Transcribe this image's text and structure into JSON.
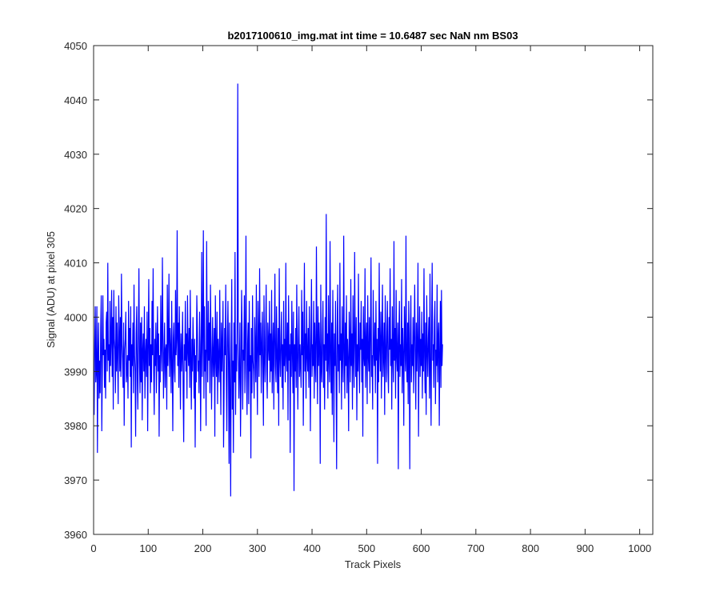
{
  "chart_data": {
    "type": "line",
    "title": "b2017100610_img.mat int time = 10.6487 sec  NaN nm BS03",
    "xlabel": "Track Pixels",
    "ylabel": "Signal (ADU) at pixel 305",
    "xlim": [
      0,
      1024
    ],
    "ylim": [
      3960,
      4050
    ],
    "xticks": [
      0,
      100,
      200,
      300,
      400,
      500,
      600,
      700,
      800,
      900,
      1000
    ],
    "yticks": [
      3960,
      3970,
      3980,
      3990,
      4000,
      4010,
      4020,
      4030,
      4040,
      4050
    ],
    "grid": false,
    "legend": "none",
    "series": [
      {
        "color": "#0000ff",
        "x_start": 1,
        "x_step": 1,
        "summary": {
          "mean": 3994,
          "min": 3967,
          "max": 4043,
          "count": 1024
        },
        "values": [
          3982,
          3995,
          4002,
          3988,
          3990,
          4002,
          3975,
          3993,
          3999,
          3985,
          3992,
          3986,
          3998,
          4004,
          3979,
          3990,
          4004,
          3993,
          3996,
          3987,
          3994,
          3985,
          3999,
          4001,
          3990,
          4010,
          3992,
          3995,
          3988,
          4003,
          3991,
          3996,
          4005,
          3989,
          4000,
          3983,
          4005,
          3996,
          3994,
          3986,
          4002,
          3990,
          3999,
          3993,
          3984,
          4004,
          3997,
          3990,
          4000,
          3989,
          4008,
          3995,
          3992,
          3987,
          3999,
          3980,
          3994,
          3996,
          4001,
          3988,
          3990,
          3993,
          3985,
          4003,
          3992,
          3998,
          3989,
          4002,
          3976,
          3995,
          3991,
          3999,
          3986,
          4006,
          3993,
          3990,
          3978,
          3997,
          4002,
          3989,
          3983,
          3996,
          4009,
          3992,
          3986,
          3999,
          3988,
          4000,
          3981,
          3994,
          3997,
          3990,
          4002,
          3985,
          3993,
          3996,
          3989,
          4001,
          3979,
          3994,
          4007,
          3991,
          3998,
          3986,
          3995,
          3988,
          4003,
          3993,
          4009,
          3990,
          3982,
          3996,
          3991,
          3999,
          3986,
          3994,
          4002,
          3990,
          3997,
          3978,
          3993,
          3988,
          4004,
          3995,
          3990,
          4011,
          3997,
          3985,
          3993,
          3999,
          3987,
          3994,
          3995,
          3983,
          4006,
          3991,
          3996,
          4008,
          3989,
          3998,
          3994,
          3986,
          4003,
          3992,
          3979,
          3996,
          3999,
          3990,
          3988,
          4005,
          3993,
          3996,
          4016,
          3991,
          3999,
          3987,
          4002,
          3994,
          3983,
          3997,
          3990,
          3993,
          4001,
          3986,
          3977,
          3995,
          3992,
          4003,
          3990,
          3997,
          3985,
          4004,
          3994,
          3991,
          3998,
          3987,
          4005,
          3992,
          3983,
          3996,
          3990,
          4000,
          3994,
          3985,
          3996,
          3976,
          3993,
          3988,
          4004,
          3998,
          3990,
          3992,
          3986,
          4001,
          3995,
          3979,
          3994,
          4012,
          3989,
          3998,
          4016,
          3985,
          4002,
          3990,
          3994,
          3980,
          4014,
          3995,
          3988,
          4003,
          3992,
          3999,
          3986,
          4006,
          3996,
          3983,
          3992,
          4000,
          3989,
          3993,
          3998,
          3978,
          4004,
          3993,
          3989,
          4001,
          3984,
          3996,
          3992,
          3988,
          4005,
          3993,
          3982,
          3999,
          3990,
          3995,
          4003,
          3976,
          3987,
          3998,
          3993,
          4006,
          3989,
          3979,
          3996,
          4003,
          3991,
          3973,
          3999,
          3986,
          3967,
          3994,
          4007,
          3983,
          3992,
          3975,
          3999,
          3988,
          4012,
          3982,
          3995,
          3990,
          4000,
          4043,
          3994,
          3985,
          3991,
          3999,
          3978,
          3988,
          4005,
          3997,
          3983,
          3994,
          3992,
          4004,
          3986,
          3996,
          4015,
          3990,
          3982,
          3995,
          3999,
          3984,
          4003,
          3990,
          3993,
          3974,
          3998,
          3986,
          4004,
          3992,
          3990,
          3985,
          4000,
          3994,
          3988,
          4006,
          3992,
          3982,
          4003,
          3996,
          3989,
          4009,
          3993,
          3999,
          3986,
          3995,
          4001,
          3990,
          3980,
          4004,
          3993,
          3988,
          3997,
          4006,
          3990,
          3985,
          3999,
          3995,
          3992,
          4003,
          3988,
          3997,
          3990,
          4005,
          3986,
          3994,
          3999,
          3983,
          3996,
          4008,
          3991,
          3988,
          4002,
          3993,
          3986,
          3998,
          3980,
          4009,
          3993,
          3989,
          3996,
          4001,
          3987,
          3995,
          3983,
          4003,
          3991,
          3996,
          3988,
          4010,
          3993,
          3990,
          3999,
          3981,
          4004,
          3992,
          3995,
          3975,
          3997,
          3989,
          4003,
          3994,
          3986,
          4001,
          3968,
          3995,
          3990,
          3998,
          3987,
          4006,
          3993,
          3983,
          3996,
          4002,
          3989,
          3995,
          3991,
          3987,
          4005,
          3993,
          4001,
          3980,
          3994,
          4010,
          3990,
          3997,
          3985,
          4003,
          3993,
          3990,
          3998,
          3987,
          4002,
          3994,
          3979,
          3996,
          4007,
          3989,
          3995,
          3991,
          4003,
          3985,
          3999,
          3992,
          3988,
          4013,
          3996,
          3984,
          4002,
          3991,
          3999,
          3994,
          3973,
          4006,
          3991,
          3988,
          3997,
          4003,
          3987,
          3995,
          3983,
          4000,
          3992,
          4019,
          3990,
          3997,
          3985,
          4004,
          3992,
          3988,
          4014,
          3993,
          3986,
          3999,
          3982,
          4005,
          3994,
          3977,
          3997,
          3991,
          4003,
          3989,
          3972,
          3998,
          4006,
          3990,
          3995,
          3986,
          4010,
          3992,
          3997,
          3983,
          4002,
          3993,
          3988,
          4015,
          3994,
          3985,
          3999,
          3991,
          4004,
          3986,
          3996,
          3992,
          3979,
          4001,
          3995,
          3988,
          4007,
          3991,
          3997,
          3983,
          4004,
          3993,
          3987,
          4012,
          3996,
          3989,
          4000,
          3981,
          3995,
          3990,
          4008,
          3992,
          3986,
          3999,
          3994,
          4003,
          3988,
          3996,
          3978,
          4002,
          3993,
          3991,
          4009,
          3987,
          3995,
          3999,
          3984,
          4004,
          3993,
          3990,
          4000,
          3986,
          3997,
          4011,
          3989,
          3993,
          3983,
          4005,
          3994,
          3991,
          3999,
          3986,
          4003,
          3992,
          3996,
          3973,
          3998,
          3988,
          4010,
          3994,
          3990,
          4001,
          3985,
          3996,
          4006,
          3989,
          3993,
          3999,
          3982,
          4004,
          3994,
          3988,
          3997,
          4003,
          3990,
          3986,
          4000,
          3994,
          4009,
          3991,
          3996,
          3983,
          4002,
          3993,
          3988,
          4014,
          3992,
          3998,
          3985,
          4005,
          3993,
          3990,
          3999,
          3972,
          3996,
          4003,
          3989,
          3995,
          3991,
          4007,
          3986,
          3998,
          3993,
          3980,
          4002,
          3996,
          3990,
          4015,
          3992,
          3988,
          3999,
          3984,
          4003,
          3994,
          3972,
          3997,
          4004,
          3988,
          3995,
          3991,
          4000,
          3986,
          3996,
          4006,
          3993,
          3983,
          3999,
          3990,
          3995,
          4010,
          3978,
          3994,
          4002,
          3989,
          3996,
          3991,
          4001,
          3985,
          3997,
          3990,
          4009,
          3993,
          3986,
          3999,
          3982,
          4004,
          3994,
          3989,
          3996,
          4000,
          3985,
          4008,
          3991,
          3980,
          3998,
          4010,
          3992,
          3995,
          3987,
          3999,
          4003,
          3984,
          3994,
          3991,
          4006,
          3988,
          3996,
          3999,
          3980,
          3993,
          4003,
          3987,
          4005,
          3991,
          3995
        ]
      }
    ]
  }
}
